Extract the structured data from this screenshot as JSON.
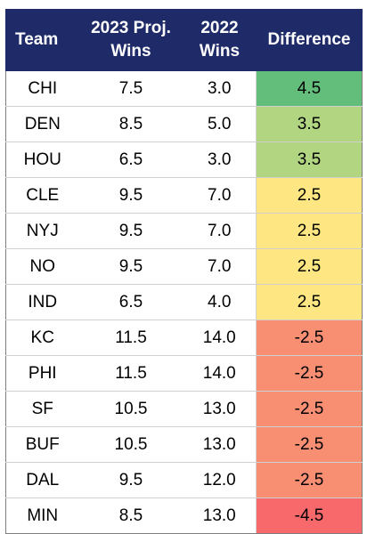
{
  "headers": {
    "team": "Team",
    "proj": [
      "2023 Proj.",
      "Wins"
    ],
    "wins2022": [
      "2022",
      "Wins"
    ],
    "difference": "Difference"
  },
  "rows": [
    {
      "team": "CHI",
      "proj": "7.5",
      "wins2022": "3.0",
      "diff": "4.5",
      "color": "#63be7b"
    },
    {
      "team": "DEN",
      "proj": "8.5",
      "wins2022": "5.0",
      "diff": "3.5",
      "color": "#b1d580"
    },
    {
      "team": "HOU",
      "proj": "6.5",
      "wins2022": "3.0",
      "diff": "3.5",
      "color": "#b1d580"
    },
    {
      "team": "CLE",
      "proj": "9.5",
      "wins2022": "7.0",
      "diff": "2.5",
      "color": "#fee783"
    },
    {
      "team": "NYJ",
      "proj": "9.5",
      "wins2022": "7.0",
      "diff": "2.5",
      "color": "#fee783"
    },
    {
      "team": "NO",
      "proj": "9.5",
      "wins2022": "7.0",
      "diff": "2.5",
      "color": "#fee783"
    },
    {
      "team": "IND",
      "proj": "6.5",
      "wins2022": "4.0",
      "diff": "2.5",
      "color": "#fee783"
    },
    {
      "team": "KC",
      "proj": "11.5",
      "wins2022": "14.0",
      "diff": "-2.5",
      "color": "#f98f72"
    },
    {
      "team": "PHI",
      "proj": "11.5",
      "wins2022": "14.0",
      "diff": "-2.5",
      "color": "#f98f72"
    },
    {
      "team": "SF",
      "proj": "10.5",
      "wins2022": "13.0",
      "diff": "-2.5",
      "color": "#f98f72"
    },
    {
      "team": "BUF",
      "proj": "10.5",
      "wins2022": "13.0",
      "diff": "-2.5",
      "color": "#f98f72"
    },
    {
      "team": "DAL",
      "proj": "9.5",
      "wins2022": "12.0",
      "diff": "-2.5",
      "color": "#f98f72"
    },
    {
      "team": "MIN",
      "proj": "8.5",
      "wins2022": "13.0",
      "diff": "-4.5",
      "color": "#f8696b"
    }
  ]
}
